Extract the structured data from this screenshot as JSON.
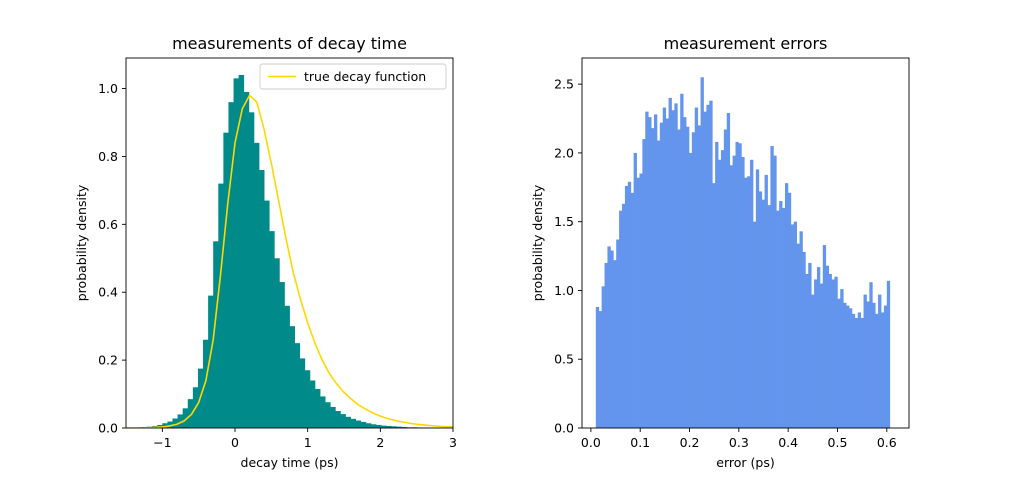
{
  "chart_data": [
    {
      "type": "histogram",
      "title": "measurements of decay time",
      "xlabel": "decay time (ps)",
      "ylabel": "probability density",
      "xlim": [
        -1.5,
        3
      ],
      "ylim": [
        0,
        1.09
      ],
      "xticks": [
        -1,
        0,
        1,
        2,
        3
      ],
      "yticks": [
        0.0,
        0.2,
        0.4,
        0.6,
        0.8,
        1.0
      ],
      "bar_color": "#008b8a",
      "bins": {
        "start": -1.35,
        "width": 0.07,
        "values": [
          0.002,
          0.003,
          0.004,
          0.006,
          0.009,
          0.014,
          0.019,
          0.028,
          0.04,
          0.058,
          0.085,
          0.12,
          0.175,
          0.26,
          0.39,
          0.55,
          0.72,
          0.87,
          0.96,
          1.03,
          1.04,
          0.99,
          0.93,
          0.84,
          0.76,
          0.67,
          0.58,
          0.5,
          0.43,
          0.36,
          0.3,
          0.25,
          0.205,
          0.17,
          0.14,
          0.115,
          0.093,
          0.076,
          0.062,
          0.05,
          0.041,
          0.033,
          0.027,
          0.022,
          0.018,
          0.014,
          0.011,
          0.009,
          0.007,
          0.006,
          0.005,
          0.004,
          0.003,
          0.002,
          0.002,
          0.001,
          0.001,
          0.001,
          0.001,
          0.0,
          0.0,
          0.0,
          0.0,
          0.0
        ]
      },
      "line": {
        "name": "true decay function",
        "color": "#ffd700",
        "x": [
          -1.5,
          -1.4,
          -1.3,
          -1.2,
          -1.1,
          -1.0,
          -0.9,
          -0.8,
          -0.7,
          -0.6,
          -0.5,
          -0.4,
          -0.3,
          -0.2,
          -0.1,
          0.0,
          0.1,
          0.2,
          0.3,
          0.4,
          0.5,
          0.6,
          0.7,
          0.8,
          0.9,
          1.0,
          1.1,
          1.2,
          1.3,
          1.4,
          1.5,
          1.6,
          1.7,
          1.8,
          1.9,
          2.0,
          2.1,
          2.2,
          2.3,
          2.4,
          2.5,
          2.6,
          2.7,
          2.8,
          2.9,
          3.0
        ],
        "y": [
          0.0,
          0.0,
          0.0,
          0.001,
          0.002,
          0.003,
          0.006,
          0.011,
          0.021,
          0.04,
          0.075,
          0.14,
          0.26,
          0.45,
          0.66,
          0.84,
          0.94,
          0.98,
          0.96,
          0.88,
          0.78,
          0.67,
          0.56,
          0.46,
          0.38,
          0.31,
          0.25,
          0.2,
          0.16,
          0.13,
          0.105,
          0.085,
          0.068,
          0.055,
          0.044,
          0.035,
          0.028,
          0.022,
          0.018,
          0.014,
          0.011,
          0.009,
          0.007,
          0.005,
          0.004,
          0.003
        ]
      },
      "legend": "top-right"
    },
    {
      "type": "histogram",
      "title": "measurement errors",
      "xlabel": "error (ps)",
      "ylabel": "probability density",
      "xlim": [
        -0.018,
        0.645
      ],
      "ylim": [
        0,
        2.69
      ],
      "xticks": [
        0.0,
        0.1,
        0.2,
        0.3,
        0.4,
        0.5,
        0.6
      ],
      "yticks": [
        0.0,
        0.5,
        1.0,
        1.5,
        2.0,
        2.5
      ],
      "bar_color": "#6495ed",
      "bins": {
        "start": 0.01,
        "width": 0.0059,
        "values": [
          0.88,
          0.85,
          1.03,
          1.2,
          1.32,
          1.29,
          1.22,
          1.37,
          1.58,
          1.63,
          1.76,
          1.79,
          1.71,
          2.0,
          1.82,
          1.85,
          2.1,
          2.3,
          2.26,
          2.18,
          2.28,
          2.09,
          2.22,
          2.33,
          2.25,
          2.4,
          2.31,
          2.36,
          2.17,
          2.43,
          2.26,
          2.19,
          2.0,
          2.15,
          2.33,
          2.2,
          2.55,
          2.3,
          2.35,
          2.38,
          1.78,
          2.08,
          1.95,
          2.02,
          2.17,
          2.29,
          1.91,
          1.98,
          2.08,
          2.07,
          1.97,
          1.82,
          1.83,
          1.95,
          1.5,
          1.88,
          1.72,
          1.66,
          1.84,
          1.62,
          2.05,
          1.98,
          1.58,
          1.65,
          1.6,
          1.78,
          1.71,
          1.48,
          1.5,
          1.34,
          1.43,
          1.28,
          1.12,
          1.2,
          0.97,
          1.08,
          1.17,
          1.05,
          1.33,
          1.18,
          1.12,
          1.08,
          1.1,
          0.94,
          1.01,
          0.91,
          0.89,
          0.87,
          0.83,
          0.8,
          0.84,
          0.8,
          0.97,
          0.92,
          1.06,
          0.91,
          0.83,
          0.97,
          0.84,
          0.89,
          1.07
        ]
      },
      "legend": "none"
    }
  ]
}
